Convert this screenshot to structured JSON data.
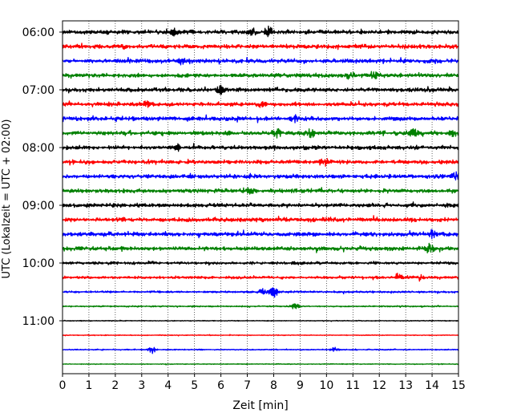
{
  "chart_data": {
    "type": "line",
    "title": "",
    "xlabel": "Zeit  [min]",
    "ylabel": "UTC (Lokalzeit = UTC + 02:00)",
    "xlim": [
      0,
      15
    ],
    "x_ticks": [
      "0",
      "1",
      "2",
      "3",
      "4",
      "5",
      "6",
      "7",
      "8",
      "9",
      "10",
      "11",
      "12",
      "13",
      "14",
      "15"
    ],
    "y_ticks": [
      "06:00",
      "07:00",
      "08:00",
      "09:00",
      "10:00",
      "11:00"
    ],
    "grid": "vertical dotted",
    "trace_colors": [
      "#000000",
      "#ff0000",
      "#0000ff",
      "#008000"
    ],
    "trace_start_times": [
      "06:00",
      "06:15",
      "06:30",
      "06:45",
      "07:00",
      "07:15",
      "07:30",
      "07:45",
      "08:00",
      "08:15",
      "08:30",
      "08:45",
      "09:00",
      "09:15",
      "09:30",
      "09:45",
      "10:00",
      "10:15",
      "10:30",
      "10:45",
      "11:00",
      "11:15",
      "11:30",
      "11:45"
    ],
    "trace_amplitude": [
      3,
      3,
      3,
      3,
      3,
      3,
      3,
      3,
      3,
      3,
      3,
      3,
      3,
      3,
      3,
      3,
      2,
      2,
      1.5,
      1,
      0.6,
      0.6,
      0.8,
      0.6
    ],
    "events": [
      {
        "trace": 0,
        "minute": 7.8,
        "amp": 7
      },
      {
        "trace": 0,
        "minute": 7.2,
        "amp": 5
      },
      {
        "trace": 0,
        "minute": 4.2,
        "amp": 4
      },
      {
        "trace": 2,
        "minute": 4.5,
        "amp": 4
      },
      {
        "trace": 3,
        "minute": 10.9,
        "amp": 5
      },
      {
        "trace": 3,
        "minute": 11.8,
        "amp": 5
      },
      {
        "trace": 4,
        "minute": 6.0,
        "amp": 5
      },
      {
        "trace": 5,
        "minute": 3.2,
        "amp": 4
      },
      {
        "trace": 5,
        "minute": 7.5,
        "amp": 4
      },
      {
        "trace": 6,
        "minute": 8.8,
        "amp": 5
      },
      {
        "trace": 7,
        "minute": 8.1,
        "amp": 7
      },
      {
        "trace": 7,
        "minute": 9.4,
        "amp": 6
      },
      {
        "trace": 7,
        "minute": 13.3,
        "amp": 5
      },
      {
        "trace": 7,
        "minute": 14.8,
        "amp": 4
      },
      {
        "trace": 8,
        "minute": 4.4,
        "amp": 4
      },
      {
        "trace": 9,
        "minute": 9.9,
        "amp": 6
      },
      {
        "trace": 10,
        "minute": 14.9,
        "amp": 6
      },
      {
        "trace": 11,
        "minute": 7.1,
        "amp": 4
      },
      {
        "trace": 13,
        "minute": 10.1,
        "amp": 4
      },
      {
        "trace": 14,
        "minute": 14.0,
        "amp": 5
      },
      {
        "trace": 15,
        "minute": 13.9,
        "amp": 6
      },
      {
        "trace": 17,
        "minute": 12.7,
        "amp": 5
      },
      {
        "trace": 17,
        "minute": 13.5,
        "amp": 4
      },
      {
        "trace": 18,
        "minute": 8.0,
        "amp": 7
      },
      {
        "trace": 18,
        "minute": 7.6,
        "amp": 4
      },
      {
        "trace": 19,
        "minute": 8.8,
        "amp": 4
      },
      {
        "trace": 22,
        "minute": 3.4,
        "amp": 5
      },
      {
        "trace": 22,
        "minute": 10.3,
        "amp": 3
      }
    ]
  }
}
